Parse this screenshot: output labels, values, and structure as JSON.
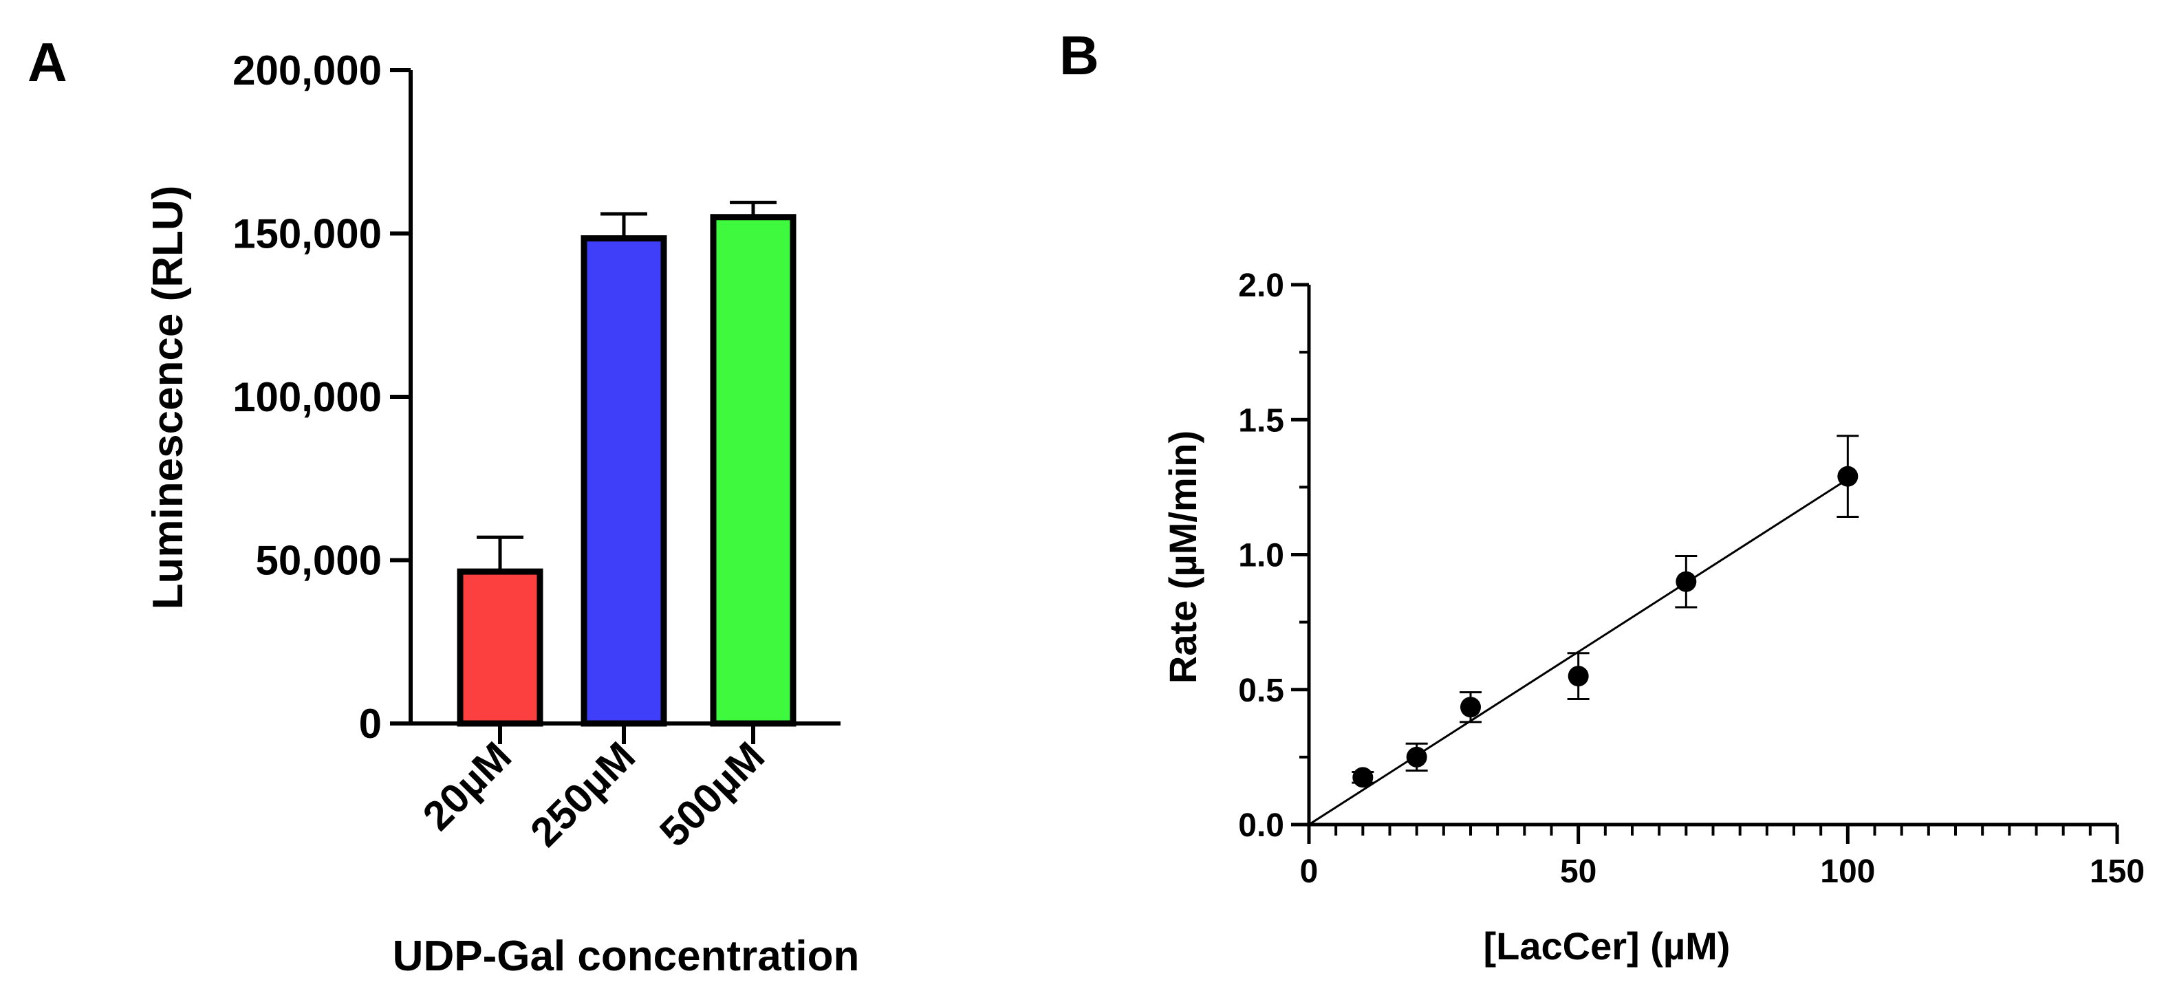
{
  "panels": {
    "a": "A",
    "b": "B"
  },
  "colors": {
    "axis": "#000000",
    "bar_outline": "#000000"
  },
  "chart_data": [
    {
      "type": "bar",
      "panel": "A",
      "categories": [
        "20µM",
        "250µM",
        "500µM"
      ],
      "values": [
        46500,
        148500,
        155000
      ],
      "errors": [
        10500,
        7500,
        4500
      ],
      "colors": [
        "#fc4040",
        "#3f3ff9",
        "#3ff93f"
      ],
      "xlabel": "UDP-Gal concentration",
      "ylabel": "Luminescence (RLU)",
      "ylim": [
        0,
        200000
      ],
      "yticks": [
        0,
        50000,
        100000,
        150000,
        200000
      ],
      "ytick_labels": [
        "0",
        "50,000",
        "100,000",
        "150,000",
        "200,000"
      ],
      "grid": false
    },
    {
      "type": "scatter",
      "panel": "B",
      "x": [
        10,
        20,
        30,
        50,
        70,
        100
      ],
      "y": [
        0.175,
        0.25,
        0.435,
        0.55,
        0.9,
        1.29
      ],
      "errors": [
        0.02,
        0.05,
        0.055,
        0.085,
        0.095,
        0.15
      ],
      "fit_line": {
        "x": [
          0,
          100
        ],
        "y": [
          0,
          1.28
        ]
      },
      "xlabel": "[LacCer] (µM)",
      "ylabel": "Rate (µM/min)",
      "xlim": [
        0,
        150
      ],
      "ylim": [
        0,
        2.0
      ],
      "xticks": [
        0,
        50,
        100,
        150
      ],
      "xtick_labels": [
        "0",
        "50",
        "100",
        "150"
      ],
      "yticks": [
        0,
        0.5,
        1.0,
        1.5,
        2.0
      ],
      "ytick_labels": [
        "0.0",
        "0.5",
        "1.0",
        "1.5",
        "2.0"
      ],
      "grid": false
    }
  ]
}
